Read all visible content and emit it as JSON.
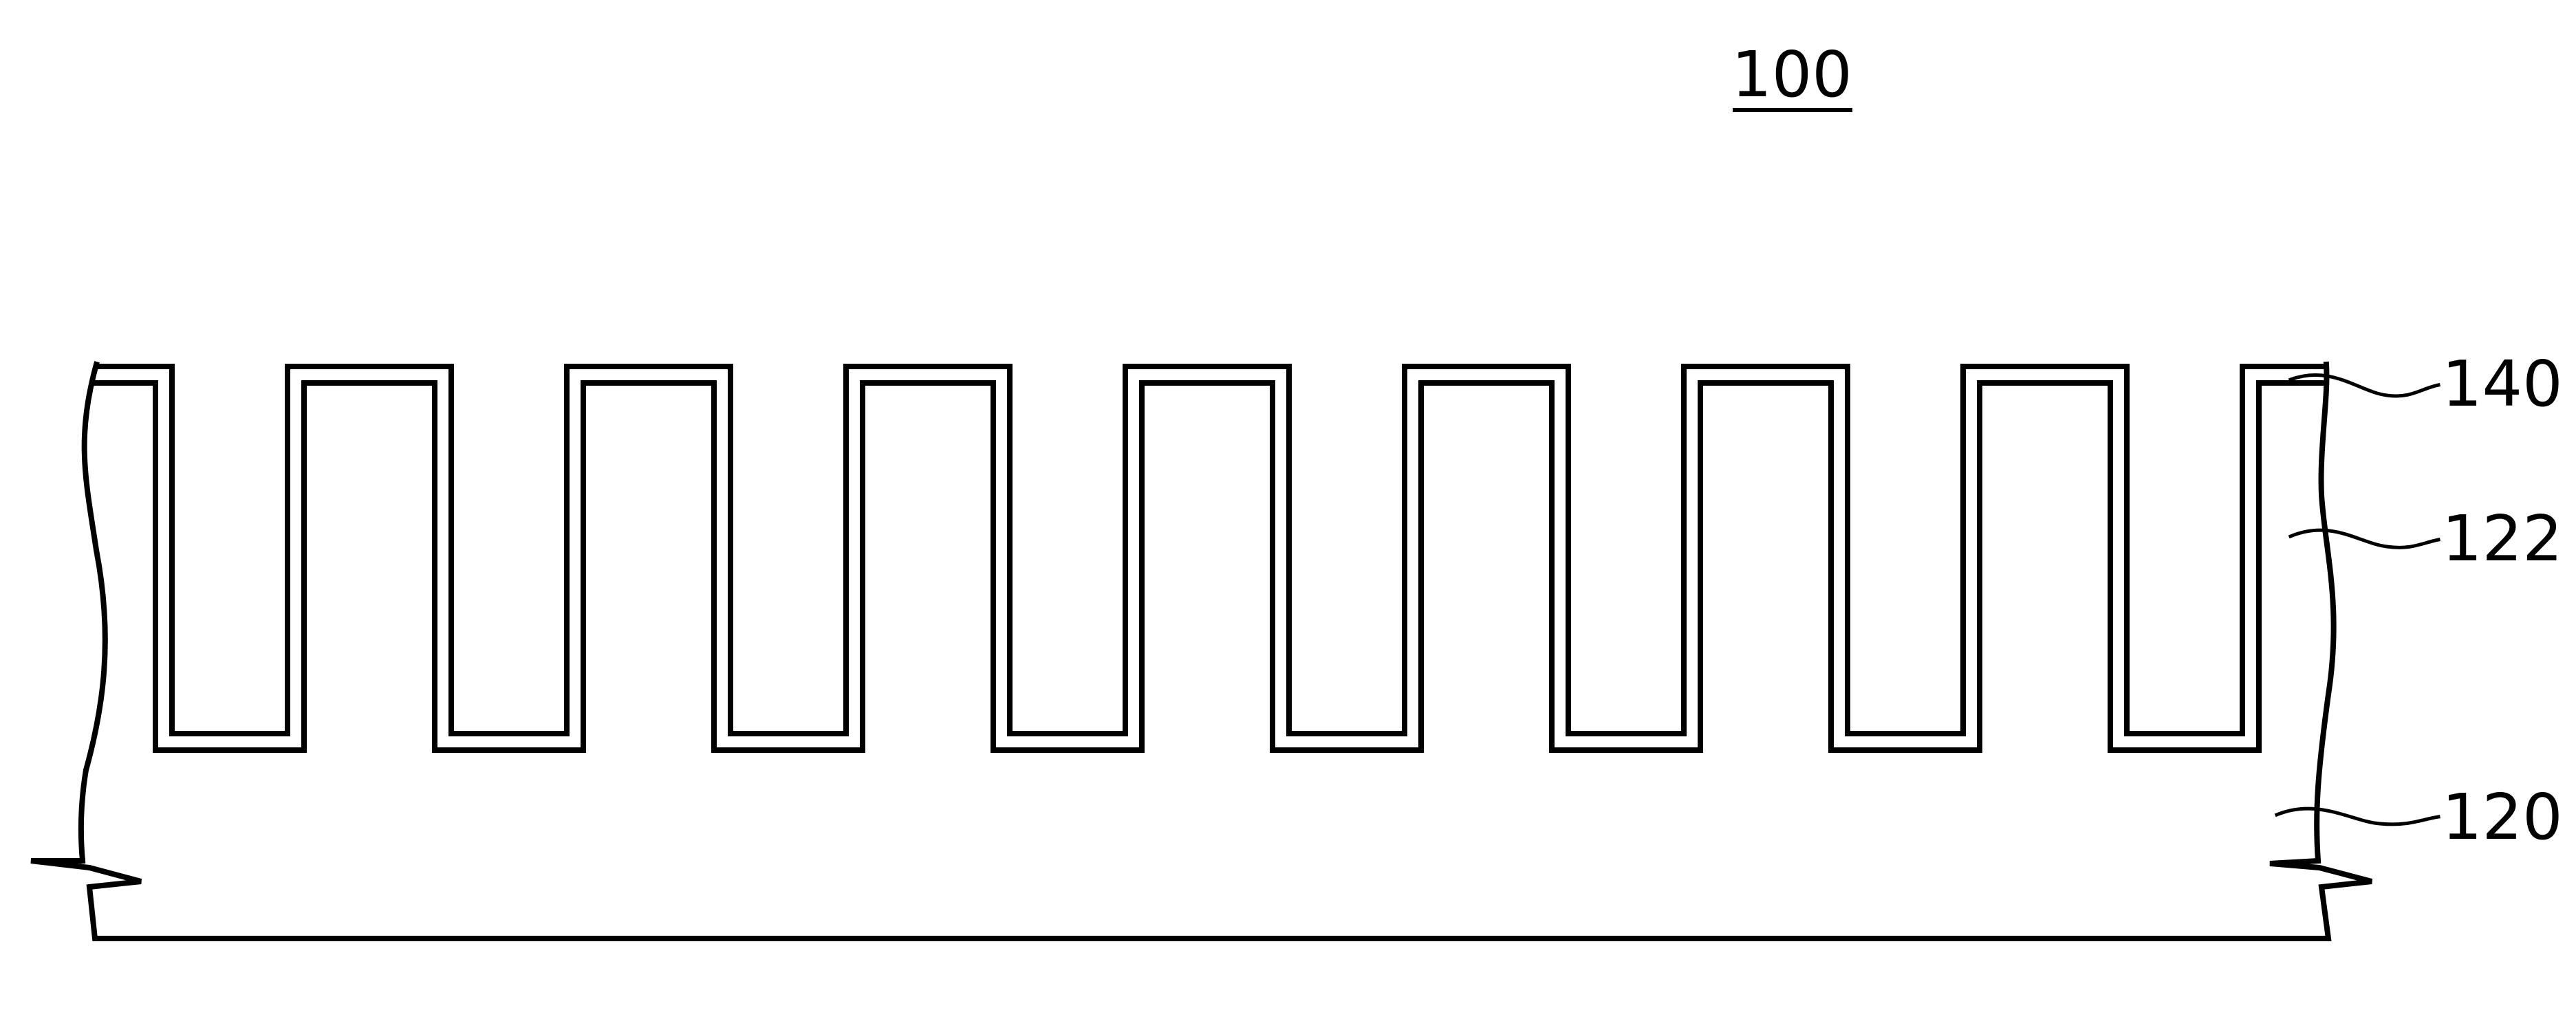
{
  "figure": {
    "title": "100",
    "trench_count": 8,
    "callouts": [
      {
        "id": "conformal-layer",
        "label": "140"
      },
      {
        "id": "patterned-layer",
        "label": "122"
      },
      {
        "id": "substrate",
        "label": "120"
      }
    ],
    "colors": {
      "line": "#000000",
      "background": "#ffffff"
    }
  }
}
